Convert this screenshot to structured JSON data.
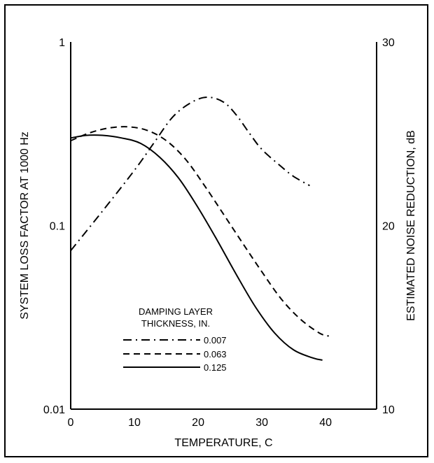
{
  "chart_data": {
    "type": "line",
    "xlabel": "TEMPERATURE, C",
    "ylabel": "SYSTEM LOSS FACTOR AT 1000 Hz",
    "y2label": "ESTIMATED NOISE REDUCTION, dB",
    "xlim": [
      0,
      48
    ],
    "ylim": [
      0.01,
      1
    ],
    "yscale": "log",
    "y2lim": [
      10,
      30
    ],
    "xticks": [
      "0",
      "10",
      "20",
      "30",
      "40"
    ],
    "xtick_values": [
      0,
      10,
      20,
      30,
      40
    ],
    "yticks": [
      "0.01",
      "0.1",
      "1"
    ],
    "ytick_values": [
      0.01,
      0.1,
      1
    ],
    "y2ticks": [
      "10",
      "20",
      "30"
    ],
    "y2tick_values": [
      10,
      20,
      30
    ],
    "legend": {
      "title_line1": "DAMPING LAYER",
      "title_line2": "THICKNESS, IN.",
      "placement": "lower-left"
    },
    "grid": false,
    "series": [
      {
        "name": "0.007",
        "style": "dashdot",
        "x": [
          0,
          5,
          10,
          13,
          16,
          19,
          21.5,
          24,
          26,
          28,
          30,
          33,
          35,
          37.5
        ],
        "y": [
          0.073,
          0.12,
          0.2,
          0.28,
          0.39,
          0.47,
          0.5,
          0.47,
          0.4,
          0.32,
          0.26,
          0.21,
          0.185,
          0.165
        ]
      },
      {
        "name": "0.063",
        "style": "dashed",
        "x": [
          0,
          3,
          6,
          9,
          12,
          15,
          18,
          21,
          24,
          27,
          30,
          33,
          36,
          39,
          40.5
        ],
        "y": [
          0.29,
          0.32,
          0.34,
          0.345,
          0.33,
          0.29,
          0.23,
          0.165,
          0.115,
          0.08,
          0.056,
          0.04,
          0.031,
          0.026,
          0.025
        ]
      },
      {
        "name": "0.125",
        "style": "solid",
        "x": [
          0,
          2.5,
          5,
          8,
          11,
          14,
          17,
          20,
          23,
          26,
          29,
          32,
          35,
          38,
          39.5
        ],
        "y": [
          0.3,
          0.31,
          0.31,
          0.3,
          0.28,
          0.235,
          0.18,
          0.125,
          0.083,
          0.054,
          0.036,
          0.026,
          0.021,
          0.019,
          0.0185
        ]
      }
    ]
  }
}
